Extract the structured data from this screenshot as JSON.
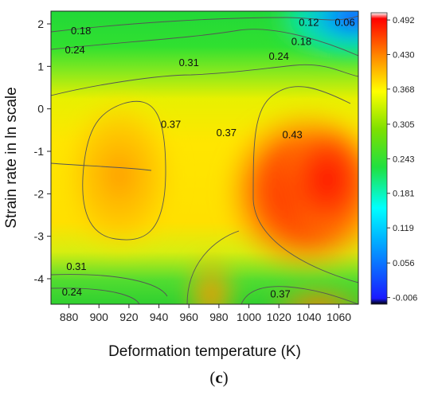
{
  "chart_data": {
    "type": "heatmap",
    "xlabel": "Deformation temperature (K)",
    "ylabel": "Strain rate in ln scale",
    "xlim": [
      868,
      1073
    ],
    "ylim": [
      -4.6,
      2.3
    ],
    "x_ticks": [
      880,
      900,
      920,
      940,
      960,
      980,
      1000,
      1020,
      1040,
      1060
    ],
    "y_ticks": [
      2,
      1,
      0,
      -1,
      -2,
      -3,
      -4
    ],
    "colorbar": {
      "ticks": [
        0.492,
        0.43,
        0.368,
        0.305,
        0.243,
        0.181,
        0.119,
        0.056,
        -0.006
      ],
      "labels": [
        "0.492",
        "0.430",
        "0.368",
        "0.305",
        "0.243",
        "0.181",
        "0.119",
        "0.056",
        "-0.006"
      ],
      "colors": [
        "#000000",
        "#1a1aff",
        "#00b0ff",
        "#00ffff",
        "#20e040",
        "#7ee000",
        "#ffff00",
        "#ff8a00",
        "#ff0000",
        "#ffffff"
      ]
    },
    "contour_labels": [
      {
        "text": "0.12",
        "x": 1040,
        "y": 2.05
      },
      {
        "text": "0.06",
        "x": 1064,
        "y": 2.05
      },
      {
        "text": "0.18",
        "x": 888,
        "y": 1.85
      },
      {
        "text": "0.18",
        "x": 1035,
        "y": 1.6
      },
      {
        "text": "0.24",
        "x": 884,
        "y": 1.4
      },
      {
        "text": "0.24",
        "x": 1020,
        "y": 1.25
      },
      {
        "text": "0.31",
        "x": 960,
        "y": 1.1
      },
      {
        "text": "0.37",
        "x": 948,
        "y": -0.35
      },
      {
        "text": "0.37",
        "x": 985,
        "y": -0.55
      },
      {
        "text": "0.43",
        "x": 1029,
        "y": -0.6
      },
      {
        "text": "0.31",
        "x": 885,
        "y": -3.7
      },
      {
        "text": "0.24",
        "x": 882,
        "y": -4.3
      },
      {
        "text": "0.37",
        "x": 1021,
        "y": -4.35
      }
    ]
  },
  "caption": {
    "open": "(",
    "letter": "c",
    "close": ")"
  }
}
